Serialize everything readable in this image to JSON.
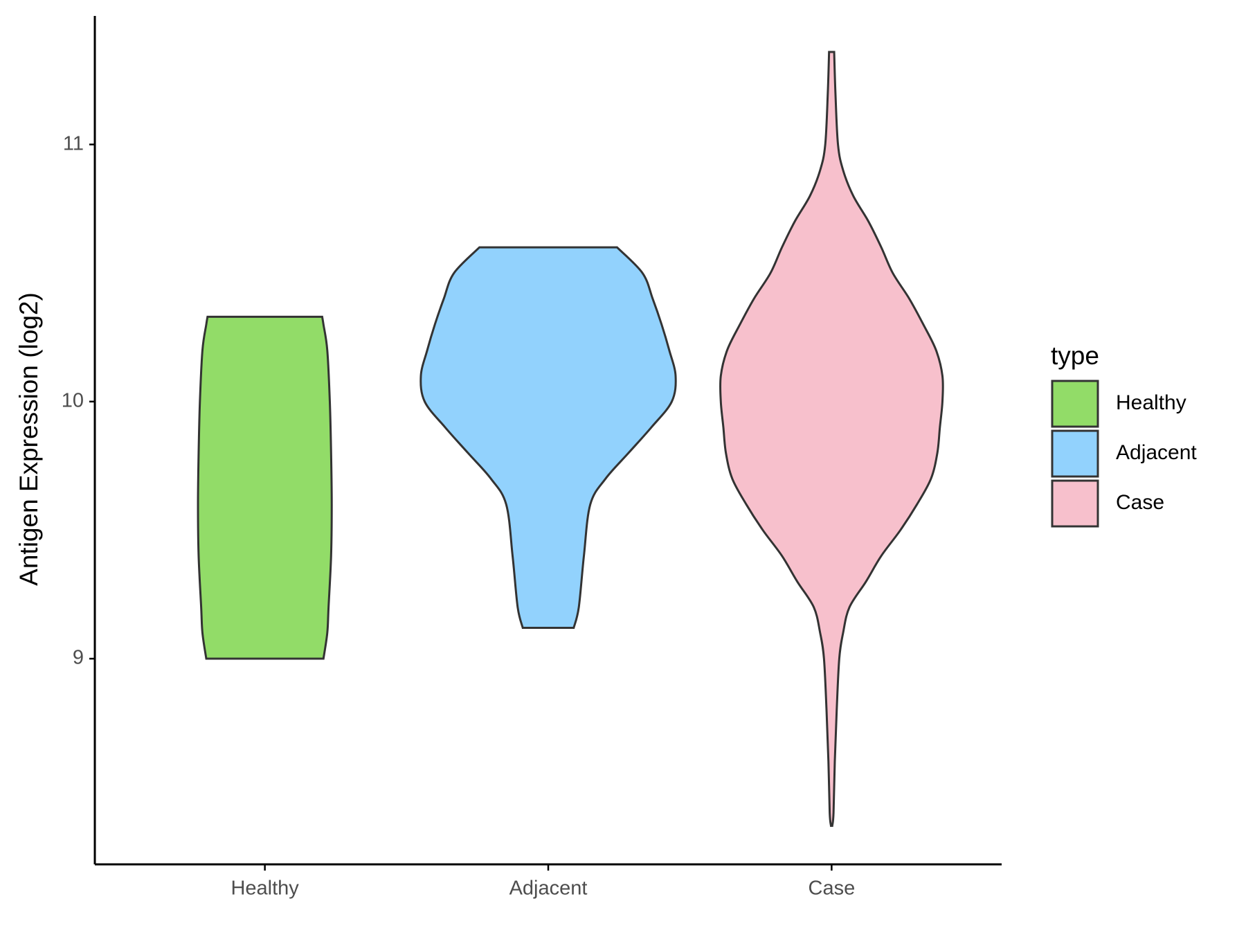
{
  "chart_data": {
    "type": "violin",
    "y_label": "Antigen Expression (log2)",
    "categories": [
      "Healthy",
      "Adjacent",
      "Case"
    ],
    "legend_title": "type",
    "legend_position": "right",
    "ylim": [
      8.2,
      11.5
    ],
    "yticks": [
      9,
      10,
      11
    ],
    "series": [
      {
        "name": "Healthy",
        "color": "#92dc68",
        "y": [
          9.0,
          9.1,
          9.2,
          9.4,
          9.6,
          9.8,
          10.0,
          10.2,
          10.3,
          10.33
        ],
        "width": [
          0.46,
          0.49,
          0.5,
          0.52,
          0.525,
          0.52,
          0.51,
          0.49,
          0.46,
          0.45
        ]
      },
      {
        "name": "Adjacent",
        "color": "#92d2fd",
        "y": [
          9.12,
          9.2,
          9.4,
          9.6,
          9.7,
          9.8,
          9.9,
          10.0,
          10.1,
          10.2,
          10.3,
          10.4,
          10.5,
          10.6
        ],
        "width": [
          0.2,
          0.24,
          0.28,
          0.33,
          0.45,
          0.63,
          0.81,
          0.97,
          1.0,
          0.95,
          0.89,
          0.82,
          0.74,
          0.54
        ]
      },
      {
        "name": "Case",
        "color": "#f7c0cc",
        "y": [
          8.35,
          8.4,
          8.6,
          8.8,
          9.0,
          9.1,
          9.2,
          9.3,
          9.4,
          9.5,
          9.6,
          9.7,
          9.8,
          9.9,
          10.0,
          10.1,
          10.2,
          10.3,
          10.4,
          10.5,
          10.6,
          10.7,
          10.8,
          10.9,
          11.0,
          11.2,
          11.36
        ],
        "width": [
          0.005,
          0.015,
          0.025,
          0.04,
          0.06,
          0.09,
          0.14,
          0.27,
          0.39,
          0.54,
          0.67,
          0.78,
          0.83,
          0.85,
          0.87,
          0.87,
          0.82,
          0.72,
          0.61,
          0.48,
          0.39,
          0.29,
          0.17,
          0.09,
          0.05,
          0.03,
          0.02
        ]
      }
    ]
  }
}
